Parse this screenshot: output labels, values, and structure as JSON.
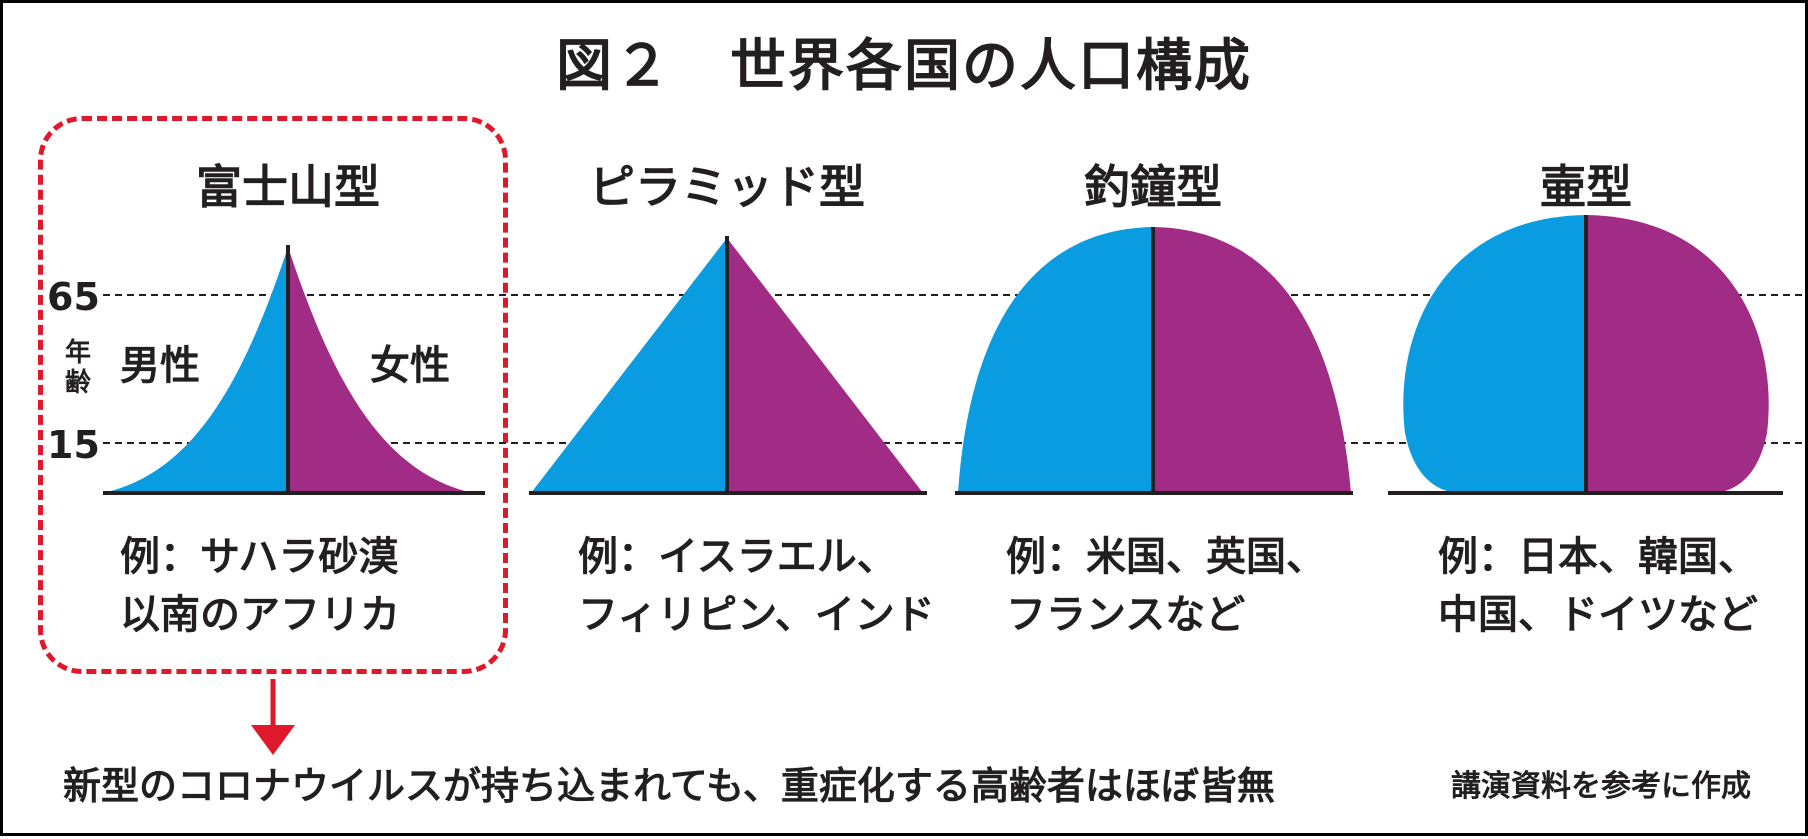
{
  "title": "図２　世界各国の人口構成",
  "age_axis": {
    "label": "年齢",
    "tick_upper": "65",
    "tick_lower": "15"
  },
  "sex_labels": {
    "male": "男性",
    "female": "女性"
  },
  "pyramids": [
    {
      "name": "富士山型",
      "example_line1": "例：サハラ砂漠",
      "example_line2": "以南のアフリカ",
      "highlighted": true
    },
    {
      "name": "ピラミッド型",
      "example_line1": "例：イスラエル、",
      "example_line2": "フィリピン、インド",
      "highlighted": false
    },
    {
      "name": "釣鐘型",
      "example_line1": "例：米国、英国、",
      "example_line2": "フランスなど",
      "highlighted": false
    },
    {
      "name": "壷型",
      "example_line1": "例：日本、韓国、",
      "example_line2": "中国、ドイツなど",
      "highlighted": false
    }
  ],
  "footer_note": "新型のコロナウイルスが持ち込まれても、重症化する高齢者はほぼ皆無",
  "source_note": "講演資料を参考に作成",
  "colors": {
    "male": "#0a9ce1",
    "female": "#a02c86",
    "highlight": "#e0182c",
    "line": "#231f20"
  }
}
